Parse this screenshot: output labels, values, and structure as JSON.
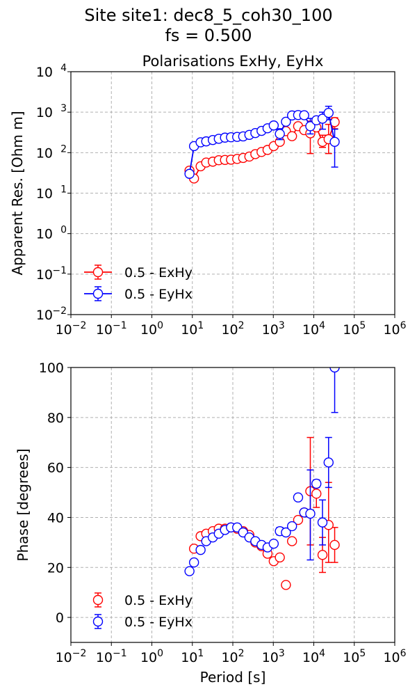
{
  "figure": {
    "title_line1": "Site site1: dec8_5_coh30_100",
    "title_line2": "fs = 0.500"
  },
  "chart_data": [
    {
      "type": "scatter",
      "title": "Polarisations ExHy, EyHx",
      "xlabel": "",
      "ylabel": "Apparent Res. [Ohm m]",
      "xscale": "log",
      "yscale": "log",
      "xlim": [
        0.01,
        1000000
      ],
      "ylim": [
        0.01,
        10000
      ],
      "grid": true,
      "legend_position": "lower-left",
      "x_tick_labels": [
        "10^-2",
        "10^-1",
        "10^0",
        "10^1",
        "10^2",
        "10^3",
        "10^4",
        "10^5",
        "10^6"
      ],
      "y_tick_labels": [
        "10^-2",
        "10^-1",
        "10^0",
        "10^1",
        "10^2",
        "10^3",
        "10^4"
      ],
      "series": [
        {
          "name": "0.5 - ExHy",
          "color": "#ff0000",
          "connected": true,
          "x": [
            8.5,
            11,
            16,
            22,
            32,
            45,
            64,
            90,
            128,
            180,
            256,
            360,
            512,
            720,
            1024,
            1450,
            2050,
            2900,
            4100,
            5800,
            8200,
            11600,
            16400,
            23200,
            32800
          ],
          "y": [
            36,
            23,
            46,
            57,
            60,
            65,
            66,
            67,
            70,
            74,
            80,
            92,
            104,
            117,
            145,
            185,
            340,
            255,
            450,
            360,
            300,
            420,
            185,
            215,
            570
          ],
          "err_low": [
            null,
            null,
            null,
            null,
            null,
            null,
            null,
            null,
            null,
            null,
            null,
            null,
            null,
            null,
            null,
            null,
            null,
            null,
            null,
            null,
            95,
            null,
            135,
            95,
            390
          ],
          "err_high": [
            null,
            null,
            null,
            null,
            null,
            null,
            null,
            null,
            null,
            null,
            null,
            null,
            null,
            null,
            null,
            null,
            null,
            null,
            null,
            null,
            600,
            null,
            270,
            500,
            730
          ]
        },
        {
          "name": "0.5 - EyHx",
          "color": "#0000ff",
          "connected": true,
          "x": [
            8.5,
            11,
            16,
            22,
            32,
            45,
            64,
            90,
            128,
            180,
            256,
            360,
            512,
            720,
            1024,
            1450,
            2050,
            2900,
            4100,
            5800,
            8200,
            11600,
            16400,
            23200,
            32800
          ],
          "y": [
            30,
            145,
            180,
            190,
            205,
            220,
            235,
            240,
            245,
            252,
            275,
            305,
            345,
            400,
            470,
            290,
            580,
            830,
            850,
            840,
            450,
            630,
            690,
            960,
            185
          ],
          "err_low": [
            null,
            null,
            null,
            null,
            null,
            null,
            null,
            null,
            null,
            null,
            null,
            null,
            null,
            null,
            null,
            210,
            null,
            null,
            null,
            null,
            290,
            null,
            380,
            650,
            44
          ],
          "err_high": [
            null,
            null,
            null,
            null,
            null,
            null,
            null,
            null,
            null,
            null,
            null,
            null,
            null,
            null,
            null,
            390,
            null,
            null,
            null,
            null,
            700,
            null,
            1000,
            1400,
            380
          ]
        }
      ]
    },
    {
      "type": "scatter",
      "title": "",
      "xlabel": "Period [s]",
      "ylabel": "Phase [degrees]",
      "xscale": "log",
      "yscale": "linear",
      "xlim": [
        0.01,
        1000000
      ],
      "ylim": [
        -10,
        100
      ],
      "grid": true,
      "legend_position": "lower-left",
      "x_tick_labels": [
        "10^-2",
        "10^-1",
        "10^0",
        "10^1",
        "10^2",
        "10^3",
        "10^4",
        "10^5",
        "10^6"
      ],
      "y_ticks": [
        0,
        20,
        40,
        60,
        80,
        100
      ],
      "series": [
        {
          "name": "0.5 - ExHy",
          "color": "#ff0000",
          "connected": false,
          "x": [
            11,
            16,
            22,
            32,
            45,
            64,
            90,
            128,
            180,
            256,
            360,
            512,
            720,
            1024,
            1450,
            2050,
            2900,
            4100,
            5800,
            8200,
            11600,
            16400,
            23200,
            32800
          ],
          "y": [
            27.5,
            32.5,
            33.5,
            34.5,
            35.5,
            35.5,
            36,
            35.5,
            34.5,
            33,
            30,
            28.5,
            25.5,
            22.5,
            24,
            13,
            30.5,
            39,
            42,
            50.5,
            49.5,
            25,
            37,
            29
          ],
          "err_low": [
            null,
            null,
            null,
            null,
            null,
            null,
            null,
            null,
            null,
            null,
            null,
            null,
            null,
            null,
            null,
            null,
            null,
            null,
            null,
            29,
            44,
            18,
            22,
            22
          ],
          "err_high": [
            null,
            null,
            null,
            null,
            null,
            null,
            null,
            null,
            null,
            null,
            null,
            null,
            null,
            null,
            null,
            null,
            null,
            null,
            null,
            72,
            55,
            32,
            54,
            36
          ]
        },
        {
          "name": "0.5 - EyHx",
          "color": "#0000ff",
          "connected": false,
          "x": [
            8.5,
            11,
            16,
            22,
            32,
            45,
            64,
            90,
            128,
            180,
            256,
            360,
            512,
            720,
            1024,
            1450,
            2050,
            2900,
            4100,
            5800,
            8200,
            11600,
            16400,
            23200,
            32800
          ],
          "y": [
            18.5,
            22,
            27,
            30.5,
            32,
            33.5,
            35,
            36,
            36,
            34,
            32,
            30.5,
            29,
            28,
            29.5,
            34.5,
            34,
            36.5,
            48,
            42,
            41.5,
            53.5,
            38,
            62,
            100
          ],
          "err_low": [
            null,
            null,
            null,
            null,
            null,
            null,
            null,
            null,
            null,
            null,
            null,
            null,
            null,
            null,
            null,
            33,
            null,
            null,
            null,
            null,
            23,
            52,
            29,
            52,
            82
          ],
          "err_high": [
            null,
            null,
            null,
            null,
            null,
            null,
            null,
            null,
            null,
            null,
            null,
            null,
            null,
            null,
            null,
            36,
            null,
            null,
            null,
            null,
            59,
            55,
            47,
            72,
            100
          ]
        }
      ]
    }
  ]
}
